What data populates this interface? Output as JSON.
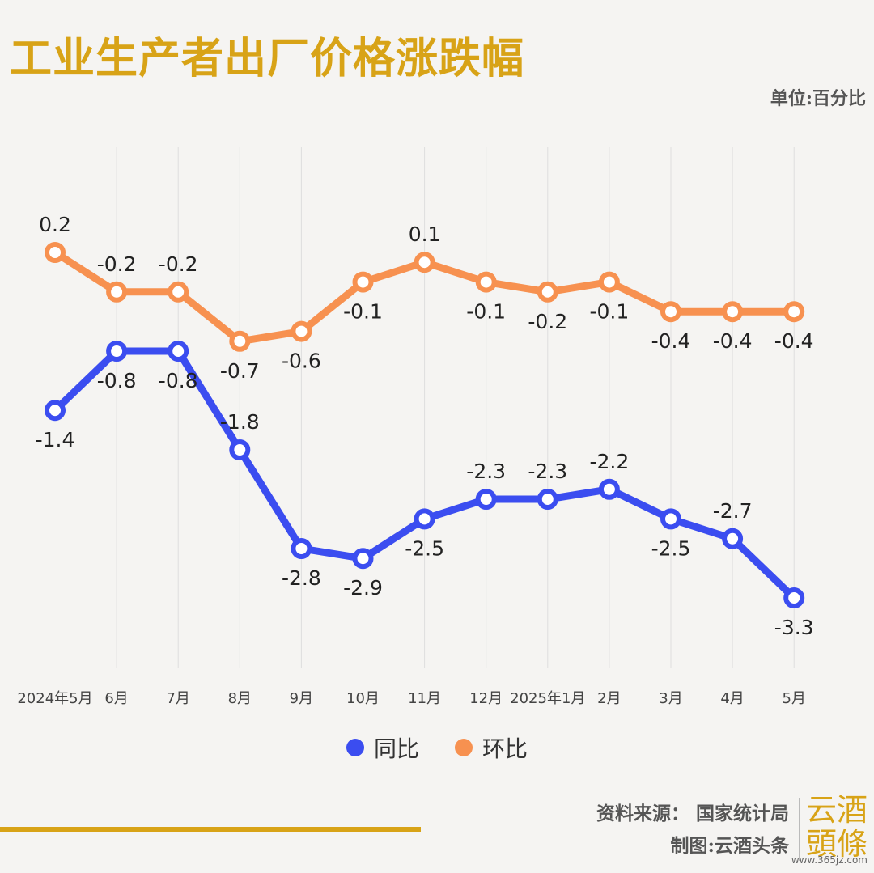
{
  "title": "工业生产者出厂价格涨跌幅",
  "unit": "单位:百分比",
  "chart_data": {
    "type": "line",
    "categories": [
      "2024年5月",
      "6月",
      "7月",
      "8月",
      "9月",
      "10月",
      "11月",
      "12月",
      "2025年1月",
      "2月",
      "3月",
      "4月",
      "5月"
    ],
    "series": [
      {
        "name": "同比",
        "color": "#3b4df0",
        "values": [
          -1.4,
          -0.8,
          -0.8,
          -1.8,
          -2.8,
          -2.9,
          -2.5,
          -2.3,
          -2.3,
          -2.2,
          -2.5,
          -2.7,
          -3.3
        ]
      },
      {
        "name": "环比",
        "color": "#f79150",
        "values": [
          0.2,
          -0.2,
          -0.2,
          -0.7,
          -0.6,
          -0.1,
          0.1,
          -0.1,
          -0.2,
          -0.1,
          -0.4,
          -0.4,
          -0.4
        ]
      }
    ],
    "label_positions": [
      [
        "below",
        "below",
        "below",
        "above",
        "below",
        "below",
        "below",
        "above",
        "above",
        "above",
        "below",
        "above",
        "below"
      ],
      [
        "above",
        "above",
        "above",
        "below",
        "below",
        "below",
        "above",
        "below",
        "below",
        "below",
        "below",
        "below",
        "below"
      ]
    ],
    "grid": "vertical",
    "legend_position": "bottom"
  },
  "footer": {
    "source": "资料来源： 国家统计局",
    "maker": "制图:云酒头条"
  },
  "logo": {
    "line1": "云酒",
    "line2": "頭條"
  },
  "site": "www.365jz.com"
}
